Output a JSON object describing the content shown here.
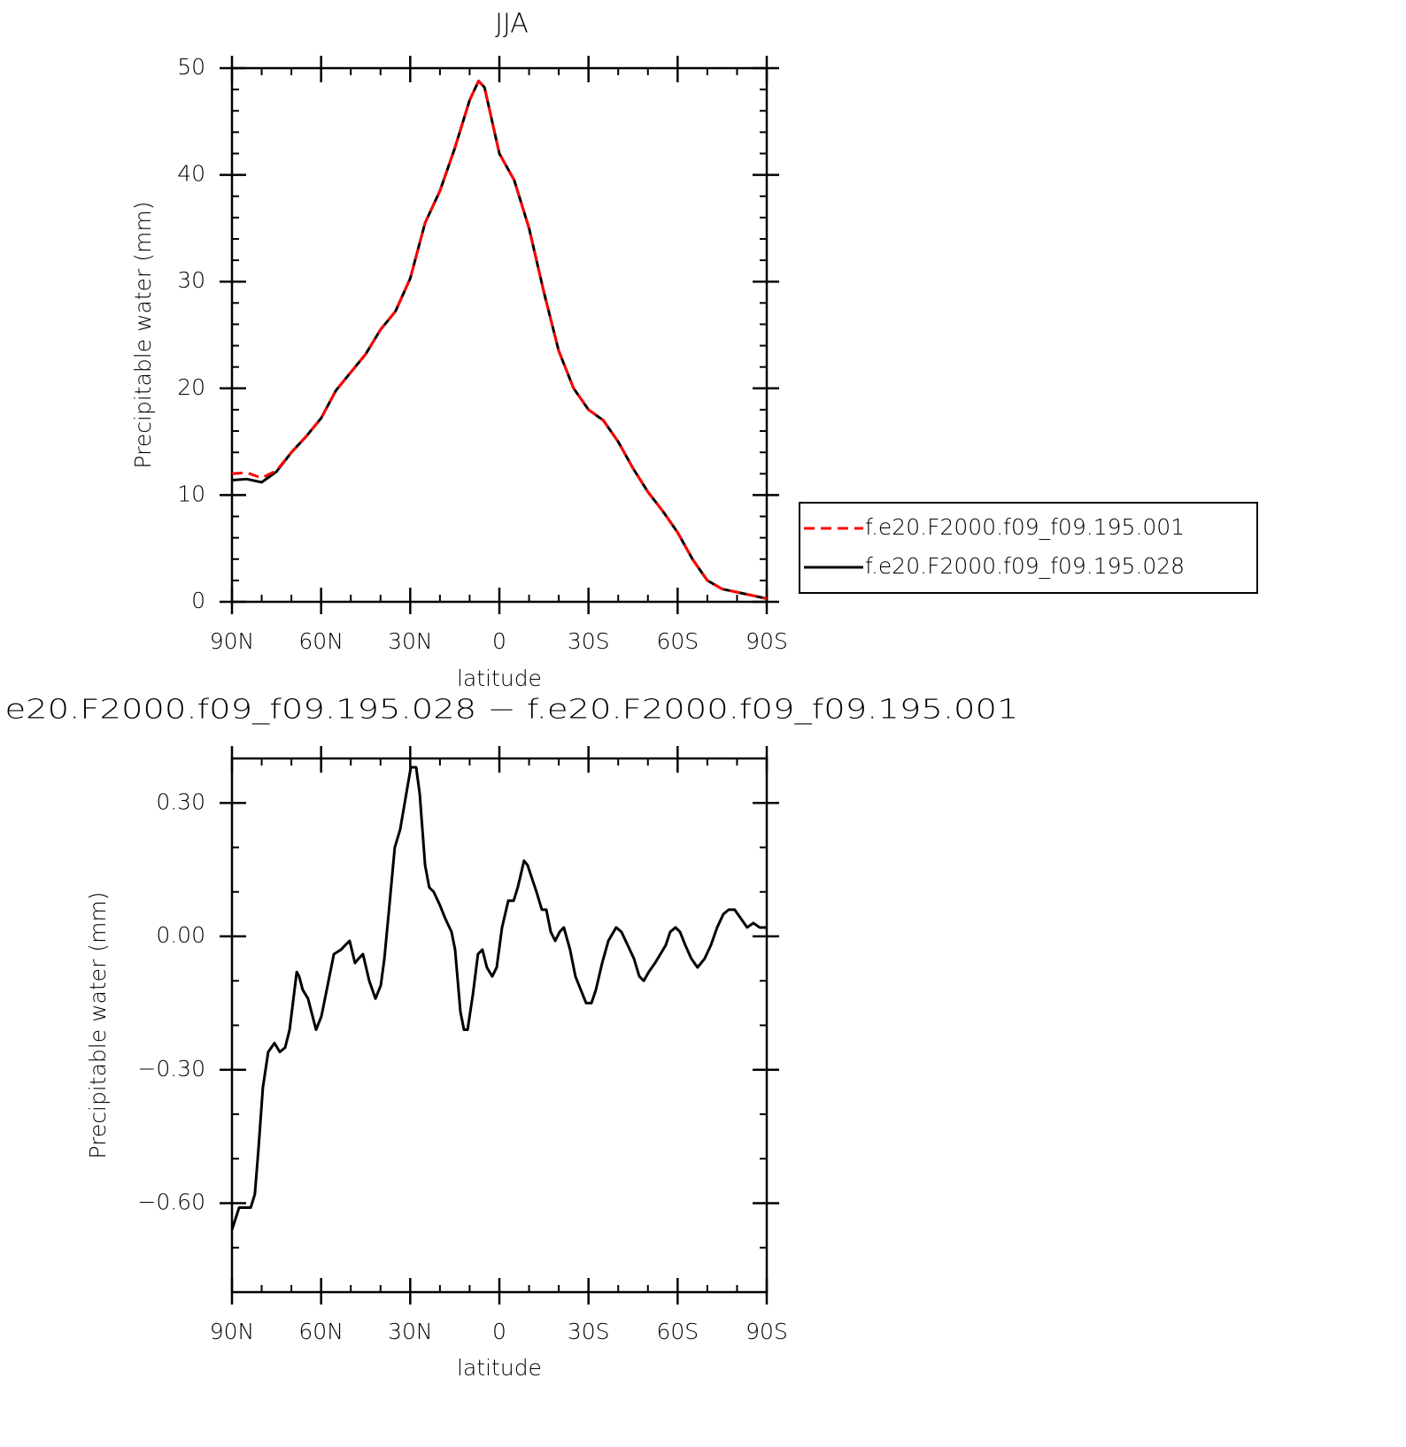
{
  "chart_data": [
    {
      "type": "line",
      "title": "JJA",
      "xlabel": "latitude",
      "ylabel": "Precipitable water (mm)",
      "xlim": [
        90,
        -90
      ],
      "ylim": [
        0,
        50
      ],
      "xticks": [
        {
          "value": 90,
          "label": "90N"
        },
        {
          "value": 60,
          "label": "60N"
        },
        {
          "value": 30,
          "label": "30N"
        },
        0,
        {
          "value": -30,
          "label": "30S"
        },
        {
          "value": -60,
          "label": "60S"
        },
        {
          "value": -90,
          "label": "90S"
        }
      ],
      "yticks": [
        0,
        10,
        20,
        30,
        40,
        50
      ],
      "legend": "right",
      "x": [
        90,
        85,
        80,
        75,
        70,
        65,
        60,
        55,
        50,
        45,
        40,
        35,
        30,
        25,
        20,
        15,
        10,
        7,
        5,
        0,
        -5,
        -10,
        -15,
        -20,
        -25,
        -30,
        -35,
        -40,
        -45,
        -50,
        -55,
        -60,
        -65,
        -70,
        -75,
        -80,
        -85,
        -90
      ],
      "series": [
        {
          "name": "f.e20.F2000.f09_f09.195.001",
          "color": "#ff0000",
          "dashed": true,
          "values": [
            12.0,
            12.1,
            11.6,
            12.3,
            14.0,
            15.5,
            17.2,
            19.8,
            21.5,
            23.2,
            25.5,
            27.2,
            30.3,
            35.5,
            38.5,
            42.5,
            47.0,
            48.8,
            48.2,
            42.0,
            39.5,
            35.0,
            29.0,
            23.5,
            20.0,
            18.0,
            17.0,
            15.0,
            12.5,
            10.3,
            8.5,
            6.5,
            4.0,
            2.0,
            1.2,
            0.9,
            0.6,
            0.3
          ]
        },
        {
          "name": "f.e20.F2000.f09_f09.195.028",
          "color": "#000000",
          "dashed": false,
          "values": [
            11.4,
            11.5,
            11.2,
            12.2,
            14.0,
            15.5,
            17.2,
            19.8,
            21.5,
            23.2,
            25.5,
            27.2,
            30.3,
            35.5,
            38.5,
            42.5,
            47.0,
            48.8,
            48.2,
            42.0,
            39.5,
            35.0,
            29.0,
            23.5,
            20.0,
            18.0,
            17.0,
            15.0,
            12.5,
            10.3,
            8.5,
            6.5,
            4.0,
            2.0,
            1.2,
            0.9,
            0.6,
            0.3
          ]
        }
      ]
    },
    {
      "type": "line",
      "title": "e20.F2000.f09_f09.195.028 − f.e20.F2000.f09_f09.195.001",
      "xlabel": "latitude",
      "ylabel": "Precipitable water (mm)",
      "xlim": [
        90,
        -90
      ],
      "ylim": [
        -0.8,
        0.4
      ],
      "xticks": [
        {
          "value": 90,
          "label": "90N"
        },
        {
          "value": 60,
          "label": "60N"
        },
        {
          "value": 30,
          "label": "30N"
        },
        0,
        {
          "value": -30,
          "label": "30S"
        },
        {
          "value": -60,
          "label": "60S"
        },
        {
          "value": -90,
          "label": "90S"
        }
      ],
      "yticks": [
        {
          "value": -0.6,
          "label": "−0.60"
        },
        {
          "value": -0.3,
          "label": "−0.30"
        },
        {
          "value": 0,
          "label": "0.00"
        },
        {
          "value": 0.3,
          "label": "0.30"
        }
      ],
      "x": [
        90,
        87.6,
        85.8,
        83.7,
        82.3,
        81.1,
        79.6,
        77.8,
        75.7,
        73.9,
        72.1,
        70.6,
        68.2,
        67.4,
        66.2,
        64.4,
        61.7,
        59.9,
        57.8,
        55.7,
        53.3,
        51.9,
        50.4,
        48.6,
        47.4,
        45.9,
        43.8,
        41.7,
        39.9,
        38.7,
        37.0,
        35.2,
        33.4,
        31.6,
        29.8,
        28.0,
        26.8,
        25.0,
        23.6,
        22.1,
        20.0,
        18.2,
        16.1,
        14.9,
        13.1,
        11.9,
        10.7,
        8.9,
        7.2,
        5.7,
        4.2,
        2.4,
        0.9,
        -0.9,
        -3.0,
        -4.8,
        -6.2,
        -8.3,
        -9.5,
        -11.0,
        -12.5,
        -14.3,
        -15.8,
        -17.3,
        -18.8,
        -20.3,
        -21.7,
        -23.8,
        -25.6,
        -27.4,
        -29.2,
        -31.0,
        -32.5,
        -34.6,
        -36.7,
        -39.3,
        -41.1,
        -43.2,
        -45.3,
        -47.1,
        -48.6,
        -50.3,
        -52.4,
        -54.2,
        -56.0,
        -57.5,
        -59.3,
        -60.8,
        -62.6,
        -64.6,
        -66.7,
        -69.1,
        -71.2,
        -73.3,
        -75.4,
        -77.2,
        -79.2,
        -81.3,
        -83.4,
        -85.5,
        -87.6,
        -90
      ],
      "series": [
        {
          "color": "#000000",
          "dashed": false,
          "values": [
            -0.66,
            -0.61,
            -0.61,
            -0.61,
            -0.58,
            -0.48,
            -0.34,
            -0.26,
            -0.24,
            -0.26,
            -0.25,
            -0.21,
            -0.08,
            -0.09,
            -0.12,
            -0.14,
            -0.21,
            -0.18,
            -0.11,
            -0.04,
            -0.03,
            -0.02,
            -0.01,
            -0.06,
            -0.05,
            -0.04,
            -0.1,
            -0.14,
            -0.11,
            -0.05,
            0.07,
            0.2,
            0.24,
            0.31,
            0.38,
            0.38,
            0.32,
            0.16,
            0.11,
            0.1,
            0.07,
            0.04,
            0.01,
            -0.03,
            -0.17,
            -0.21,
            -0.21,
            -0.13,
            -0.04,
            -0.03,
            -0.07,
            -0.09,
            -0.07,
            0.02,
            0.08,
            0.08,
            0.11,
            0.17,
            0.16,
            0.13,
            0.1,
            0.06,
            0.06,
            0.01,
            -0.01,
            0.01,
            0.02,
            -0.03,
            -0.09,
            -0.12,
            -0.15,
            -0.15,
            -0.12,
            -0.06,
            -0.01,
            0.02,
            0.01,
            -0.02,
            -0.05,
            -0.09,
            -0.1,
            -0.08,
            -0.06,
            -0.04,
            -0.02,
            0.01,
            0.02,
            0.01,
            -0.02,
            -0.05,
            -0.07,
            -0.05,
            -0.02,
            0.02,
            0.05,
            0.06,
            0.06,
            0.04,
            0.02,
            0.03,
            0.02,
            0.02
          ]
        }
      ]
    }
  ]
}
